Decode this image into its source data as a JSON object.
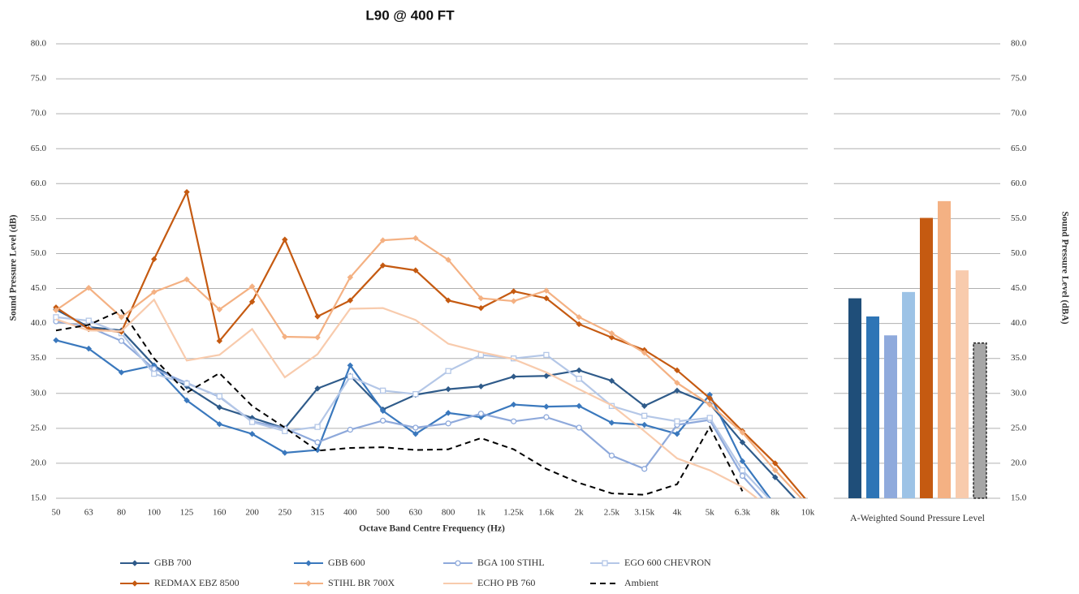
{
  "chart_data": [
    {
      "type": "line",
      "title": "L90 @ 400 FT",
      "x_label": "Octave Band Centre Frequency (Hz)",
      "y_label": "Sound Pressure Level (dB)",
      "categories": [
        "50",
        "63",
        "80",
        "100",
        "125",
        "160",
        "200",
        "250",
        "315",
        "400",
        "500",
        "630",
        "800",
        "1k",
        "1.25k",
        "1.6k",
        "2k",
        "2.5k",
        "3.15k",
        "4k",
        "5k",
        "6.3k",
        "8k",
        "10k"
      ],
      "ylim": [
        15,
        80
      ],
      "yticks": [
        {
          "value": 15,
          "label": "15.0"
        },
        {
          "value": 20,
          "label": "20.0"
        },
        {
          "value": 25,
          "label": "25.0"
        },
        {
          "value": 30,
          "label": "30.0"
        },
        {
          "value": 35,
          "label": "35.0"
        },
        {
          "value": 40,
          "label": "40.0"
        },
        {
          "value": 45,
          "label": "45.0"
        },
        {
          "value": 50,
          "label": "50.0"
        },
        {
          "value": 55,
          "label": "55.0"
        },
        {
          "value": 60,
          "label": "60.0"
        },
        {
          "value": 65,
          "label": "65.0"
        },
        {
          "value": 70,
          "label": "70.0"
        },
        {
          "value": 75,
          "label": "75.0"
        },
        {
          "value": 80,
          "label": "80.0"
        }
      ],
      "grid": true,
      "legend": "bottom",
      "series": [
        {
          "name": "GBB 700",
          "color": "#2f5b8a",
          "marker": "diamond",
          "values": [
            42.0,
            39.5,
            39,
            34,
            31,
            28,
            26.5,
            25,
            30.7,
            32.5,
            27.7,
            29.8,
            30.6,
            31,
            32.4,
            32.5,
            33.3,
            31.8,
            28.2,
            30.4,
            28.5,
            23,
            18,
            13
          ]
        },
        {
          "name": "GBB 600",
          "color": "#3a78bd",
          "marker": "diamond",
          "values": [
            37.6,
            36.4,
            33,
            34,
            29,
            25.6,
            24.2,
            21.5,
            21.9,
            34,
            27.5,
            24.2,
            27.2,
            26.6,
            28.4,
            28.1,
            28.2,
            25.8,
            25.5,
            24.2,
            29.8,
            20.3,
            14,
            12
          ]
        },
        {
          "name": "BGA 100 STIHL",
          "color": "#8ea9db",
          "marker": "circle-open",
          "values": [
            40.3,
            39.5,
            37.5,
            33.5,
            31.5,
            29.5,
            26,
            25,
            23,
            24.8,
            26.1,
            25.1,
            25.7,
            27.1,
            26,
            26.6,
            25.1,
            21.1,
            19.2,
            25.5,
            26.2,
            18.2,
            13,
            12
          ]
        },
        {
          "name": "EGO 600 CHEVRON",
          "color": "#b4c7e7",
          "marker": "square-open",
          "values": [
            40.9,
            40.4,
            38.6,
            32.8,
            31.4,
            29.6,
            25.9,
            24.6,
            25.2,
            32.4,
            30.4,
            29.9,
            33.2,
            35.5,
            35,
            35.5,
            32.1,
            28.2,
            26.8,
            26,
            26.5,
            19,
            14,
            12
          ]
        },
        {
          "name": "REDMAX EBZ 8500",
          "color": "#c55a11",
          "marker": "diamond",
          "values": [
            42.3,
            39.2,
            38.8,
            49.2,
            58.8,
            37.5,
            43.1,
            52,
            41,
            43.3,
            48.3,
            47.6,
            43.3,
            42.2,
            44.6,
            43.6,
            39.9,
            38,
            36.2,
            33.3,
            29.3,
            24.6,
            20,
            14.5
          ]
        },
        {
          "name": "STIHL BR 700X",
          "color": "#f4b183",
          "marker": "diamond",
          "values": [
            41.9,
            45.1,
            40.9,
            44.5,
            46.3,
            42,
            45.3,
            38.1,
            38,
            46.6,
            51.9,
            52.2,
            49.1,
            43.6,
            43.2,
            44.7,
            40.9,
            38.6,
            35.8,
            31.5,
            28.4,
            24.4,
            19,
            14
          ]
        },
        {
          "name": "ECHO PB 760",
          "color": "#f8cbad",
          "marker": "none",
          "values": [
            40.6,
            39,
            38.9,
            43.4,
            34.7,
            35.5,
            39.2,
            32.3,
            35.6,
            42.1,
            42.2,
            40.5,
            37.1,
            35.9,
            34.9,
            33,
            30.6,
            28.3,
            24.6,
            20.7,
            19,
            16.6,
            13,
            12
          ]
        },
        {
          "name": "Ambient",
          "color": "#000000",
          "marker": "none",
          "dash": true,
          "values": [
            39,
            39.8,
            41.9,
            35,
            30.1,
            32.9,
            28.2,
            25.1,
            21.8,
            22.2,
            22.3,
            21.9,
            22,
            23.6,
            22,
            19.2,
            17.2,
            15.7,
            15.5,
            17,
            25.2,
            16,
            null,
            null
          ]
        }
      ]
    },
    {
      "type": "bar",
      "x_label": "A-Weighted Sound Pressure Level",
      "y_label": "Sound Pressure Level (dBA)",
      "y_axis_side": "right",
      "ylim": [
        15,
        80
      ],
      "yticks": [
        {
          "value": 15,
          "label": "15.0"
        },
        {
          "value": 20,
          "label": "20.0"
        },
        {
          "value": 25,
          "label": "25.0"
        },
        {
          "value": 30,
          "label": "30.0"
        },
        {
          "value": 35,
          "label": "35.0"
        },
        {
          "value": 40,
          "label": "40.0"
        },
        {
          "value": 45,
          "label": "45.0"
        },
        {
          "value": 50,
          "label": "50.0"
        },
        {
          "value": 55,
          "label": "55.0"
        },
        {
          "value": 60,
          "label": "60.0"
        },
        {
          "value": 65,
          "label": "65.0"
        },
        {
          "value": 70,
          "label": "70.0"
        },
        {
          "value": 75,
          "label": "75.0"
        },
        {
          "value": 80,
          "label": "80.0"
        }
      ],
      "grid": true,
      "values": [
        43.6,
        41,
        38.3,
        44.5,
        55.1,
        57.5,
        47.6,
        37.2
      ],
      "colors": [
        "#1f4e79",
        "#2e75b6",
        "#8faadc",
        "#9dc3e6",
        "#c55a11",
        "#f4b183",
        "#f8cbad",
        "#a6a6a6"
      ]
    }
  ]
}
